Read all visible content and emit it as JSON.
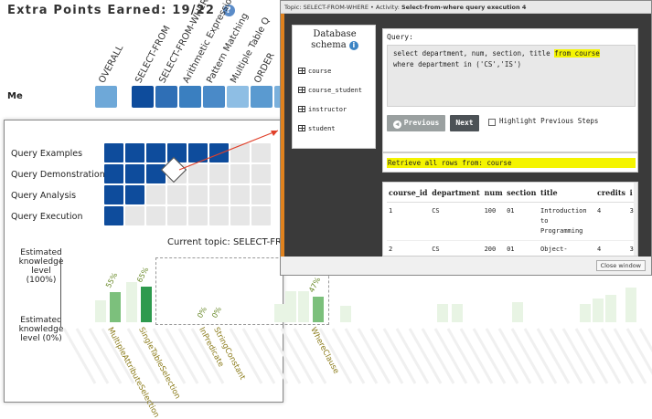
{
  "header": {
    "title": "Extra Points Earned: 19/22",
    "help_icon": "?"
  },
  "columns": [
    "OVERALL",
    "SELECT-FROM",
    "SELECT-FROM-WHERE",
    "Arithmetic Expressions",
    "Pattern Matching",
    "Multiple Table Q",
    "ORDER"
  ],
  "me_label": "Me",
  "me_colors": [
    "#6ea8d8",
    "#0e4c9c",
    "#2f6fb6",
    "#3a7fc0",
    "#4a8ac8",
    "#8ebee4",
    "#5a9ad0",
    "#7ab0dc"
  ],
  "rows": [
    {
      "label": "Query Examples",
      "filled": 6
    },
    {
      "label": "Query Demonstration",
      "filled": 3
    },
    {
      "label": "Query Analysis",
      "filled": 2
    },
    {
      "label": "Query Execution",
      "filled": 1
    }
  ],
  "topic_line": "Current topic: SELECT-FROM",
  "est_high": "Estimated knowledge level (100%)",
  "est_low": "Estimated knowledge level (0%)",
  "chart_data": {
    "type": "bar",
    "categories": [
      "MultipleAttributeSelection",
      "SingleTableSelection",
      "InPredicate",
      "StringConstant",
      "WhereClause"
    ],
    "values": [
      55,
      65,
      0,
      0,
      47
    ],
    "value_labels": [
      "55%",
      "65%",
      "0%",
      "0%",
      "47%"
    ],
    "ylim": [
      0,
      100
    ]
  },
  "modal": {
    "title_prefix": "Topic: SELECT-FROM-WHERE  •  Activity:",
    "title_activity": "Select-from-where query execution 4",
    "db_title_line1": "Database",
    "db_title_line2": "schema",
    "info_icon": "i",
    "tables": [
      "course",
      "course_student",
      "instructor",
      "student"
    ],
    "query_label": "Query:",
    "query_line1_pre": "select department, num, section, title ",
    "query_line1_hl": "from course",
    "query_line2": "where department in ('CS','IS')",
    "prev_label": "Previous",
    "next_label": "Next",
    "highlight_label": "Highlight Previous Steps",
    "retrieve_text": "Retrieve all rows from: course",
    "result_headers": [
      "course_id",
      "department",
      "num",
      "section",
      "title",
      "credits",
      "i"
    ],
    "result_rows": [
      [
        "1",
        "CS",
        "100",
        "01",
        "Introduction to Programming",
        "4",
        "3"
      ],
      [
        "2",
        "CS",
        "200",
        "01",
        "Object-Oriented",
        "4",
        "3"
      ]
    ],
    "close_label": "Close window"
  }
}
